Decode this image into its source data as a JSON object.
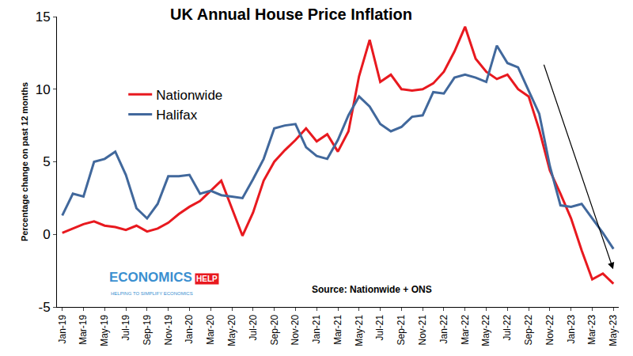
{
  "chart_data": {
    "type": "line",
    "title": "UK Annual House Price Inflation",
    "y_label": "Percentage change on past 12 months",
    "annotations": [
      "Source: Nationwide + ONS",
      "ECONOMICS",
      "HELP",
      "HELPING TO SIMPLIFY ECONOMICS"
    ],
    "categories": [
      "Jan-19",
      null,
      "Mar-19",
      null,
      "May-19",
      null,
      "Jul-19",
      null,
      "Sep-19",
      null,
      "Nov-19",
      null,
      "Jan-20",
      null,
      "Mar-20",
      null,
      "May-20",
      null,
      "Jul-20",
      null,
      "Sep-20",
      null,
      "Nov-20",
      null,
      "Jan-21",
      null,
      "Mar-21",
      null,
      "May-21",
      null,
      "Jul-21",
      null,
      "Sep-21",
      null,
      "Nov-21",
      null,
      "Jan-22",
      null,
      "Mar-22",
      null,
      "May-22",
      null,
      "Jul-22",
      null,
      "Sep-22",
      null,
      "Nov-22",
      null,
      "Jan-23",
      null,
      "Mar-23",
      null,
      "May-23"
    ],
    "series": [
      {
        "name": "Nationwide",
        "color": "#e8191f",
        "values": [
          0.1,
          0.4,
          0.7,
          0.9,
          0.6,
          0.5,
          0.3,
          0.6,
          0.2,
          0.4,
          0.8,
          1.4,
          1.9,
          2.3,
          3.0,
          3.7,
          1.8,
          -0.1,
          1.5,
          3.7,
          5.0,
          5.8,
          6.5,
          7.3,
          6.4,
          6.9,
          5.7,
          7.1,
          10.9,
          13.4,
          10.5,
          11.0,
          10.0,
          9.9,
          10.0,
          10.4,
          11.2,
          12.6,
          14.3,
          12.1,
          11.2,
          10.7,
          11.0,
          10.0,
          9.5,
          7.2,
          4.4,
          2.8,
          1.1,
          -1.1,
          -3.1,
          -2.7,
          -3.4
        ]
      },
      {
        "name": "Halifax",
        "color": "#41689c",
        "values": [
          1.3,
          2.8,
          2.6,
          5.0,
          5.2,
          5.7,
          4.1,
          1.8,
          1.1,
          2.1,
          4.0,
          4.0,
          4.1,
          2.8,
          3.0,
          2.7,
          2.6,
          2.5,
          3.8,
          5.2,
          7.3,
          7.5,
          7.6,
          6.0,
          5.4,
          5.2,
          6.5,
          8.2,
          9.5,
          8.8,
          7.6,
          7.1,
          7.4,
          8.1,
          8.2,
          9.8,
          9.7,
          10.8,
          11.0,
          10.8,
          10.5,
          13.0,
          11.8,
          11.5,
          9.9,
          8.3,
          4.7,
          2.0,
          1.9,
          2.1,
          1.1,
          0.1,
          -1.0
        ]
      }
    ],
    "ylim": [
      -5,
      15
    ],
    "yticks": [
      -5,
      0,
      5,
      10,
      15
    ],
    "grid": false,
    "legend": "upper left"
  }
}
